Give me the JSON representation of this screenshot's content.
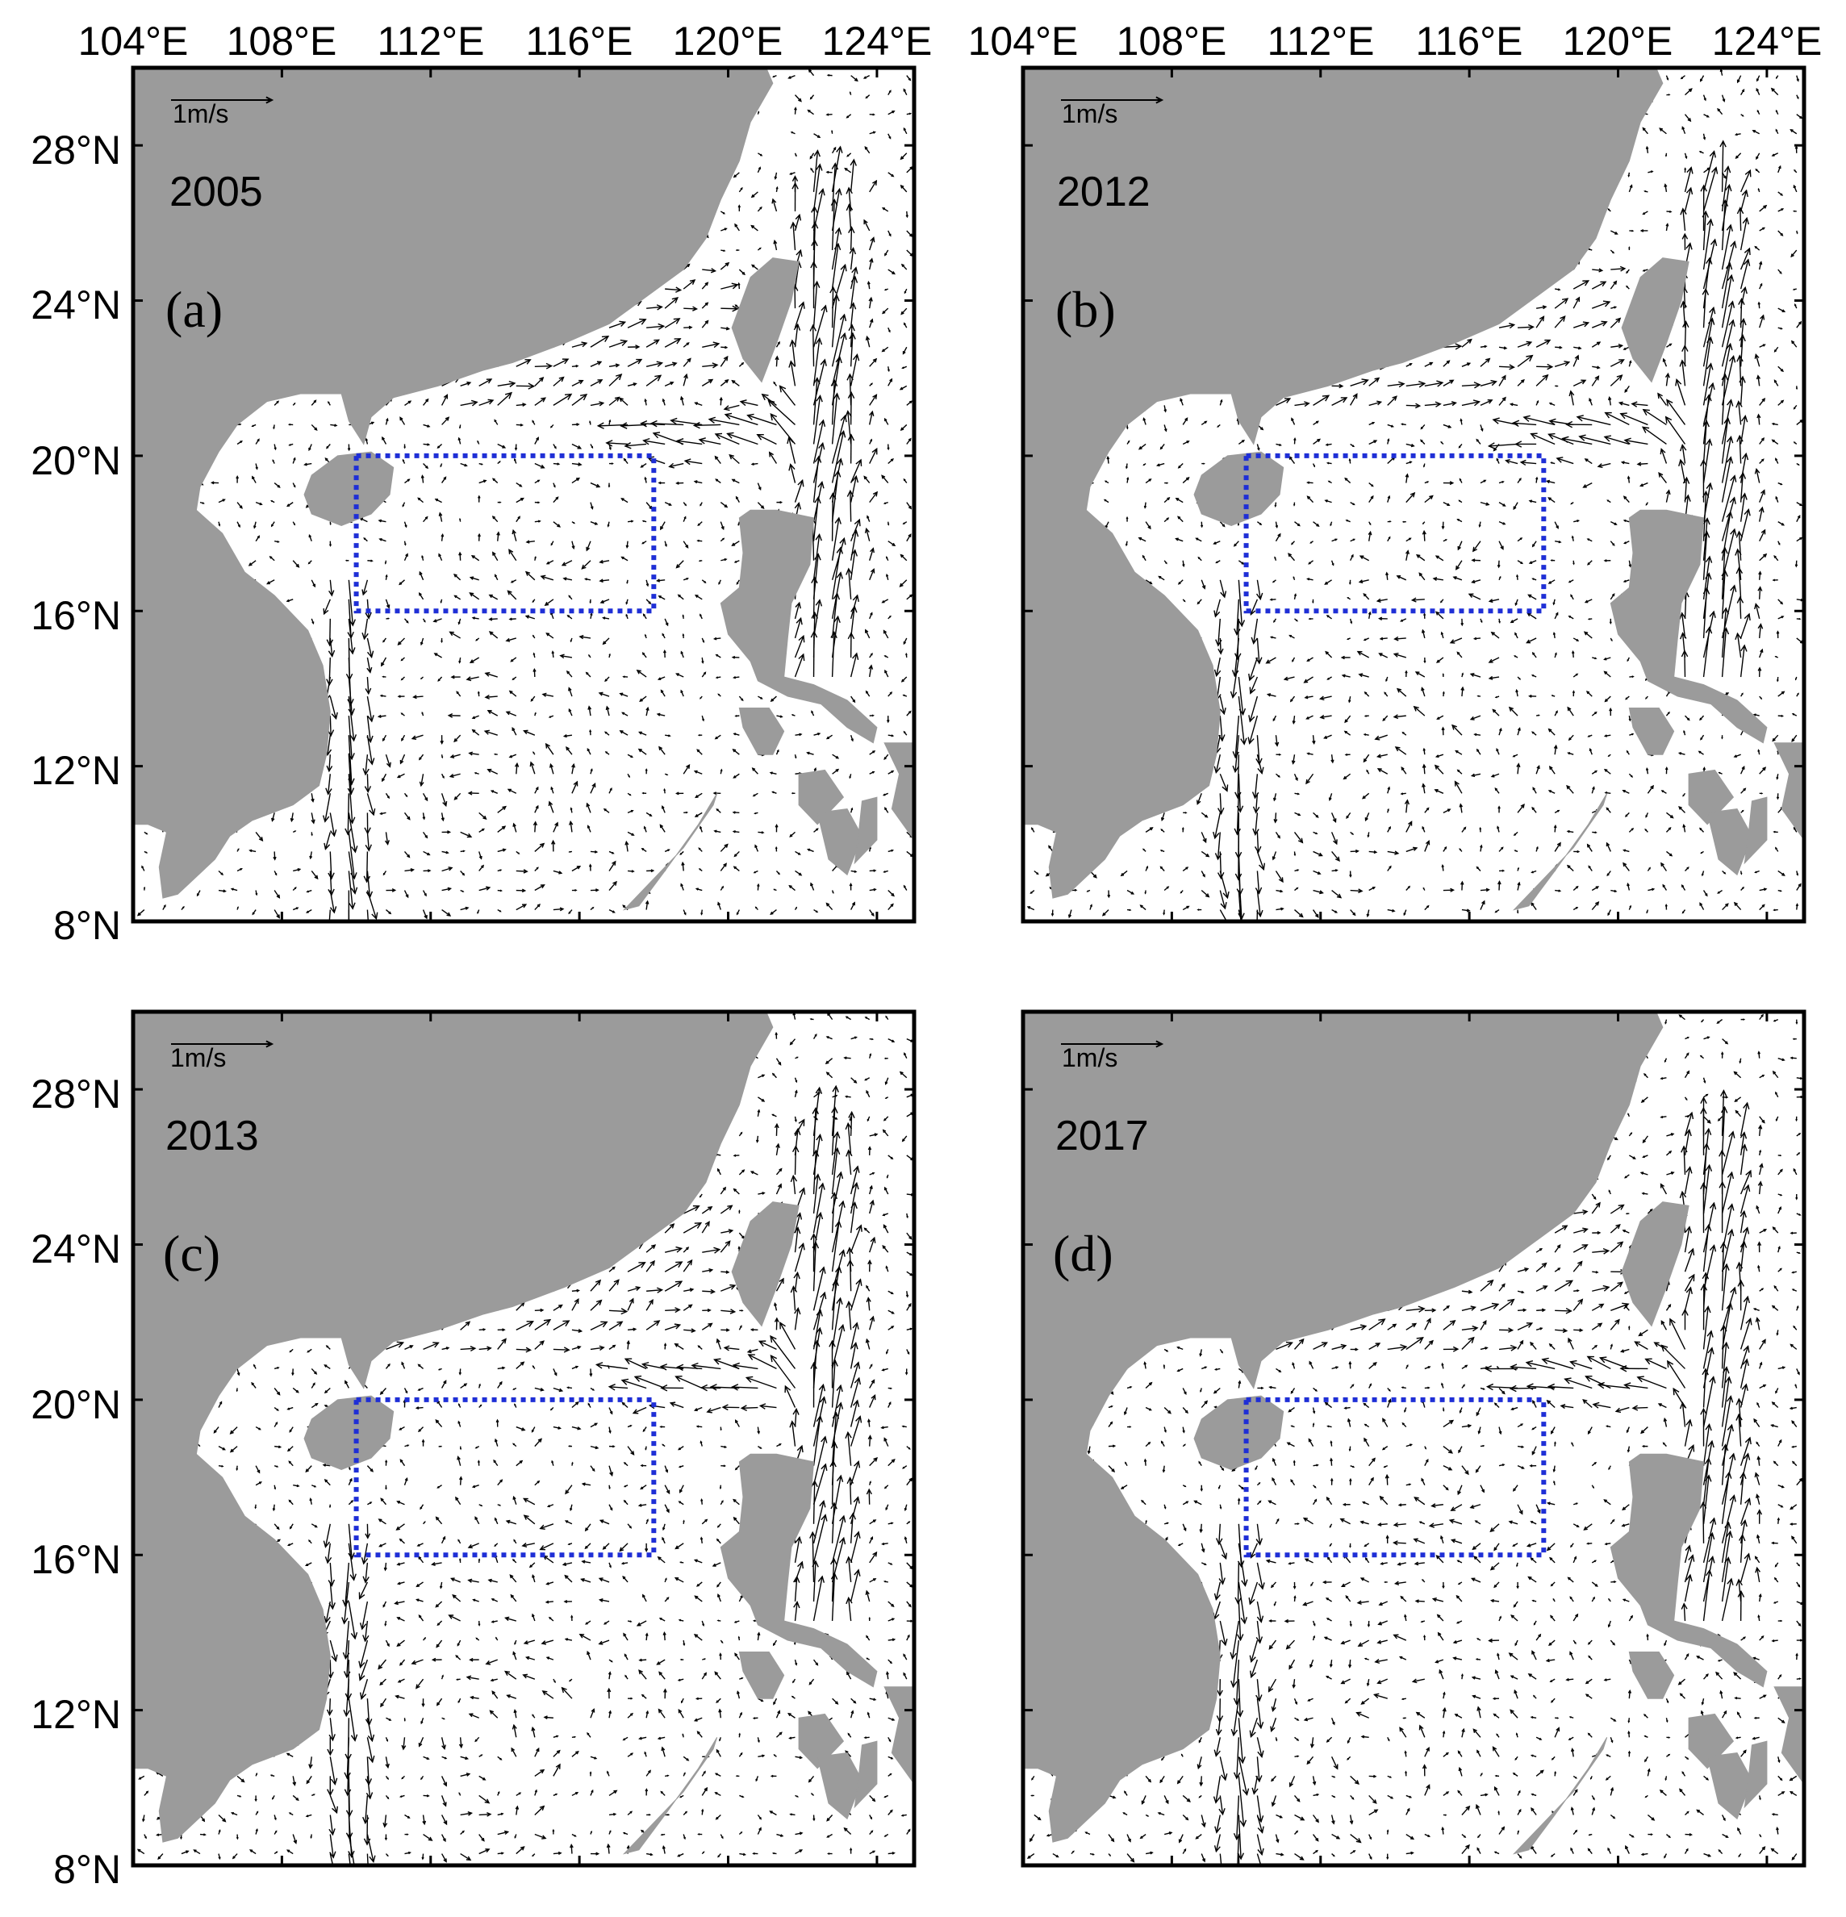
{
  "colors": {
    "land": "#9b9b9b",
    "ocean": "#ffffff",
    "frame": "#000000",
    "vector": "#000000",
    "study_box": "#1f2fd6"
  },
  "axes": {
    "x_ticks": [
      "104°E",
      "108°E",
      "112°E",
      "116°E",
      "120°E",
      "124°E"
    ],
    "y_ticks": [
      "28°N",
      "24°N",
      "20°N",
      "16°N",
      "12°N",
      "8°N"
    ],
    "lon_range": [
      104,
      125
    ],
    "lat_range": [
      8,
      30
    ]
  },
  "reference_vector_label": "1m/s",
  "study_box": {
    "lon": [
      110,
      118
    ],
    "lat": [
      16,
      20
    ]
  },
  "panels": [
    {
      "letter": "(a)",
      "year": "2005"
    },
    {
      "letter": "(b)",
      "year": "2012"
    },
    {
      "letter": "(c)",
      "year": "2013"
    },
    {
      "letter": "(d)",
      "year": "2017"
    }
  ]
}
